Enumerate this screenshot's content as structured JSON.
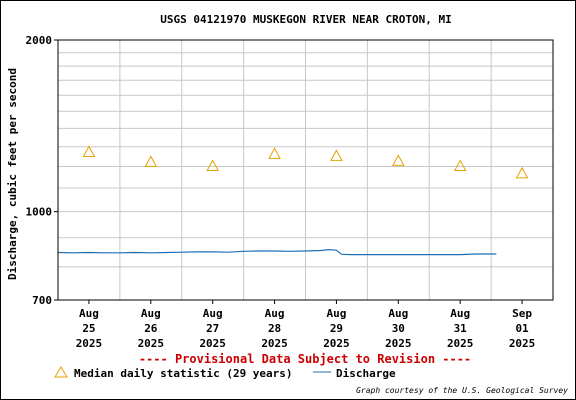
{
  "chart_data": {
    "type": "line",
    "title": "USGS 04121970 MUSKEGON RIVER NEAR CROTON, MI",
    "ylabel": "Discharge, cubic feet per second",
    "y_scale": "log",
    "ylim": [
      700,
      2000
    ],
    "y_ticks": [
      700,
      1000,
      2000
    ],
    "y_tick_labels": [
      "700",
      "1000",
      "2000"
    ],
    "x_ticks": [
      {
        "date": "2025-08-25",
        "label": [
          "Aug",
          "25",
          "2025"
        ]
      },
      {
        "date": "2025-08-26",
        "label": [
          "Aug",
          "26",
          "2025"
        ]
      },
      {
        "date": "2025-08-27",
        "label": [
          "Aug",
          "27",
          "2025"
        ]
      },
      {
        "date": "2025-08-28",
        "label": [
          "Aug",
          "28",
          "2025"
        ]
      },
      {
        "date": "2025-08-29",
        "label": [
          "Aug",
          "29",
          "2025"
        ]
      },
      {
        "date": "2025-08-30",
        "label": [
          "Aug",
          "30",
          "2025"
        ]
      },
      {
        "date": "2025-08-31",
        "label": [
          "Aug",
          "31",
          "2025"
        ]
      },
      {
        "date": "2025-09-01",
        "label": [
          "Sep",
          "01",
          "2025"
        ]
      }
    ],
    "series": [
      {
        "name": "Median daily statistic (29 years)",
        "marker": "triangle",
        "color": "#e8a000",
        "points": [
          {
            "x": "2025-08-25 12:00",
            "y": 1270
          },
          {
            "x": "2025-08-26 12:00",
            "y": 1220
          },
          {
            "x": "2025-08-27 12:00",
            "y": 1200
          },
          {
            "x": "2025-08-28 12:00",
            "y": 1260
          },
          {
            "x": "2025-08-29 12:00",
            "y": 1250
          },
          {
            "x": "2025-08-30 12:00",
            "y": 1225
          },
          {
            "x": "2025-08-31 12:00",
            "y": 1200
          },
          {
            "x": "2025-09-01 12:00",
            "y": 1165
          }
        ]
      },
      {
        "name": "Discharge",
        "marker": "line",
        "color": "#1f6fb5",
        "points": [
          {
            "x": "2025-08-25 00:00",
            "y": 848
          },
          {
            "x": "2025-08-25 06:00",
            "y": 847
          },
          {
            "x": "2025-08-25 12:00",
            "y": 848
          },
          {
            "x": "2025-08-25 18:00",
            "y": 847
          },
          {
            "x": "2025-08-26 00:00",
            "y": 847
          },
          {
            "x": "2025-08-26 06:00",
            "y": 848
          },
          {
            "x": "2025-08-26 12:00",
            "y": 847
          },
          {
            "x": "2025-08-26 18:00",
            "y": 848
          },
          {
            "x": "2025-08-27 00:00",
            "y": 849
          },
          {
            "x": "2025-08-27 06:00",
            "y": 850
          },
          {
            "x": "2025-08-27 12:00",
            "y": 850
          },
          {
            "x": "2025-08-27 18:00",
            "y": 849
          },
          {
            "x": "2025-08-28 00:00",
            "y": 852
          },
          {
            "x": "2025-08-28 06:00",
            "y": 853
          },
          {
            "x": "2025-08-28 12:00",
            "y": 853
          },
          {
            "x": "2025-08-28 18:00",
            "y": 852
          },
          {
            "x": "2025-08-29 00:00",
            "y": 853
          },
          {
            "x": "2025-08-29 06:00",
            "y": 855
          },
          {
            "x": "2025-08-29 09:00",
            "y": 858
          },
          {
            "x": "2025-08-29 12:00",
            "y": 856
          },
          {
            "x": "2025-08-29 14:00",
            "y": 842
          },
          {
            "x": "2025-08-29 18:00",
            "y": 841
          },
          {
            "x": "2025-08-30 00:00",
            "y": 841
          },
          {
            "x": "2025-08-30 06:00",
            "y": 841
          },
          {
            "x": "2025-08-30 12:00",
            "y": 841
          },
          {
            "x": "2025-08-30 18:00",
            "y": 841
          },
          {
            "x": "2025-08-31 00:00",
            "y": 841
          },
          {
            "x": "2025-08-31 06:00",
            "y": 841
          },
          {
            "x": "2025-08-31 12:00",
            "y": 841
          },
          {
            "x": "2025-08-31 18:00",
            "y": 843
          },
          {
            "x": "2025-09-01 00:00",
            "y": 843
          },
          {
            "x": "2025-09-01 02:00",
            "y": 843
          }
        ]
      }
    ],
    "grid": true,
    "legend_position": "bottom"
  },
  "provisional_note": "---- Provisional Data Subject to Revision ----",
  "credit": "Graph courtesy of the U.S. Geological Survey"
}
